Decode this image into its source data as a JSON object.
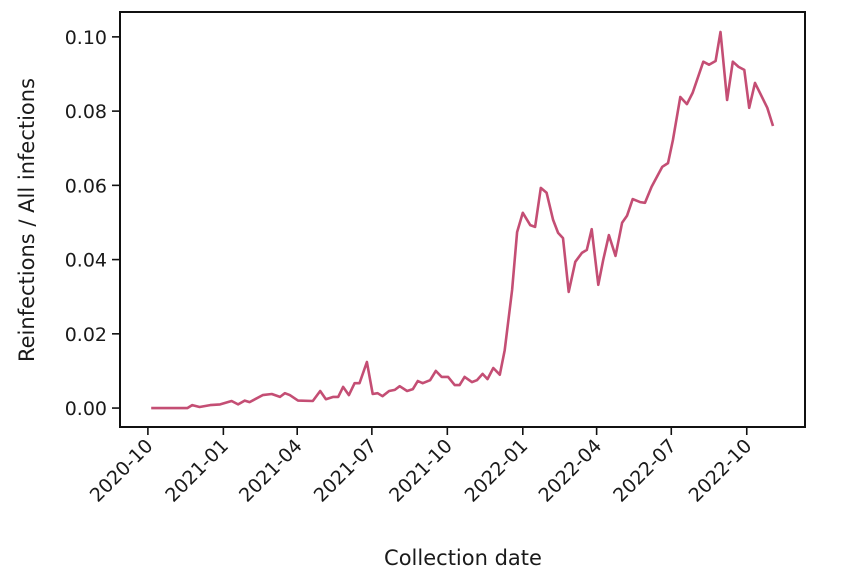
{
  "chart_data": {
    "type": "line",
    "xlabel": "Collection date",
    "ylabel": "Reinfections / All infections",
    "xlim": [
      "2020-08-28",
      "2022-12-11"
    ],
    "ylim": [
      -0.0051,
      0.1067
    ],
    "x_ticks": [
      "2020-10",
      "2021-01",
      "2021-04",
      "2021-07",
      "2021-10",
      "2022-01",
      "2022-04",
      "2022-07",
      "2022-10"
    ],
    "y_ticks": [
      "0.00",
      "0.02",
      "0.04",
      "0.06",
      "0.08",
      "0.10"
    ],
    "grid": false,
    "line_color": "#c44e74",
    "series": [
      {
        "x": [
          "2020-10-05",
          "2020-11-18",
          "2020-11-24",
          "2020-12-03",
          "2020-12-16",
          "2020-12-28",
          "2021-01-11",
          "2021-01-19",
          "2021-01-27",
          "2021-02-02",
          "2021-02-18",
          "2021-03-01",
          "2021-03-11",
          "2021-03-17",
          "2021-03-23",
          "2021-04-02",
          "2021-04-20",
          "2021-04-29",
          "2021-05-06",
          "2021-05-15",
          "2021-05-21",
          "2021-05-27",
          "2021-06-03",
          "2021-06-10",
          "2021-06-16",
          "2021-06-25",
          "2021-07-02",
          "2021-07-08",
          "2021-07-14",
          "2021-07-22",
          "2021-07-29",
          "2021-08-04",
          "2021-08-13",
          "2021-08-20",
          "2021-08-26",
          "2021-09-01",
          "2021-09-10",
          "2021-09-17",
          "2021-09-24",
          "2021-10-02",
          "2021-10-10",
          "2021-10-16",
          "2021-10-22",
          "2021-10-31",
          "2021-11-06",
          "2021-11-13",
          "2021-11-19",
          "2021-11-26",
          "2021-12-04",
          "2021-12-10",
          "2021-12-19",
          "2021-12-25",
          "2022-01-01",
          "2022-01-10",
          "2022-01-16",
          "2022-01-23",
          "2022-01-30",
          "2022-02-07",
          "2022-02-13",
          "2022-02-19",
          "2022-02-26",
          "2022-03-06",
          "2022-03-14",
          "2022-03-20",
          "2022-03-26",
          "2022-04-03",
          "2022-04-09",
          "2022-04-16",
          "2022-04-24",
          "2022-05-02",
          "2022-05-08",
          "2022-05-15",
          "2022-05-24",
          "2022-05-30",
          "2022-06-07",
          "2022-06-20",
          "2022-06-27",
          "2022-07-03",
          "2022-07-12",
          "2022-07-20",
          "2022-07-27",
          "2022-08-09",
          "2022-08-16",
          "2022-08-24",
          "2022-08-30",
          "2022-09-07",
          "2022-09-14",
          "2022-09-21",
          "2022-09-28",
          "2022-10-04",
          "2022-10-11",
          "2022-10-26",
          "2022-11-02"
        ],
        "y": [
          0.0,
          0.0,
          0.0008,
          0.0003,
          0.0008,
          0.001,
          0.0019,
          0.001,
          0.002,
          0.0016,
          0.0035,
          0.0038,
          0.003,
          0.004,
          0.0035,
          0.002,
          0.0019,
          0.0046,
          0.0024,
          0.003,
          0.003,
          0.0057,
          0.0035,
          0.0067,
          0.0067,
          0.0124,
          0.0038,
          0.004,
          0.0032,
          0.0046,
          0.0049,
          0.0059,
          0.0046,
          0.0051,
          0.0073,
          0.0067,
          0.0075,
          0.01,
          0.0084,
          0.0084,
          0.0062,
          0.0062,
          0.0084,
          0.007,
          0.0075,
          0.0092,
          0.0078,
          0.0108,
          0.009,
          0.0156,
          0.0318,
          0.0474,
          0.0526,
          0.0493,
          0.0488,
          0.0593,
          0.058,
          0.0507,
          0.0472,
          0.0458,
          0.0313,
          0.0394,
          0.0418,
          0.0426,
          0.0482,
          0.0332,
          0.0399,
          0.0466,
          0.041,
          0.0499,
          0.0518,
          0.0563,
          0.0555,
          0.0553,
          0.0596,
          0.065,
          0.066,
          0.0722,
          0.0838,
          0.0819,
          0.0849,
          0.0933,
          0.0925,
          0.0935,
          0.1013,
          0.083,
          0.0933,
          0.0919,
          0.0911,
          0.0809,
          0.0876,
          0.0809,
          0.076
        ]
      }
    ]
  }
}
